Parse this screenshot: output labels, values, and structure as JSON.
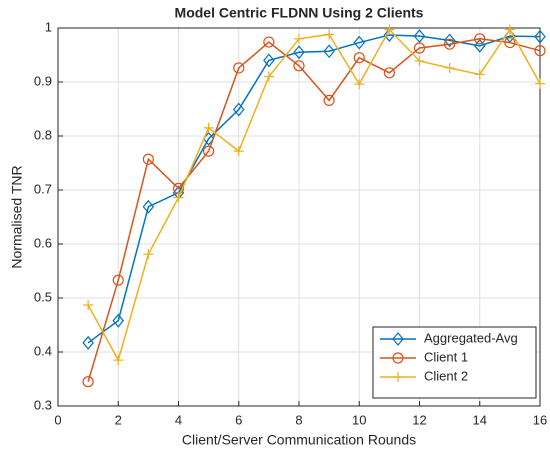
{
  "chart_data": {
    "type": "line",
    "title": "Model Centric FLDNN Using 2 Clients",
    "xlabel": "Client/Server Communication Rounds",
    "ylabel": "Normalised TNR",
    "x": [
      1,
      2,
      3,
      4,
      5,
      6,
      7,
      8,
      9,
      10,
      11,
      12,
      13,
      14,
      15,
      16
    ],
    "series": [
      {
        "name": "Aggregated-Avg",
        "color": "#0072BD",
        "marker": "diamond",
        "values": [
          0.417,
          0.458,
          0.669,
          0.695,
          0.795,
          0.849,
          0.94,
          0.955,
          0.957,
          0.973,
          0.987,
          0.985,
          0.977,
          0.967,
          0.985,
          0.984
        ]
      },
      {
        "name": "Client 1",
        "color": "#D95319",
        "marker": "circle",
        "values": [
          0.345,
          0.533,
          0.757,
          0.703,
          0.772,
          0.926,
          0.974,
          0.93,
          0.866,
          0.945,
          0.917,
          0.963,
          0.97,
          0.98,
          0.973,
          0.958
        ]
      },
      {
        "name": "Client 2",
        "color": "#EDB120",
        "marker": "plus",
        "values": [
          0.487,
          0.385,
          0.581,
          0.686,
          0.815,
          0.772,
          0.91,
          0.98,
          0.988,
          0.896,
          0.997,
          0.939,
          0.926,
          0.914,
          0.997,
          0.897
        ]
      }
    ],
    "xlim": [
      0,
      16
    ],
    "xticks": [
      0,
      2,
      4,
      6,
      8,
      10,
      12,
      14,
      16
    ],
    "ylim": [
      0.3,
      1
    ],
    "yticks": [
      0.3,
      0.4,
      0.5,
      0.6,
      0.7,
      0.8,
      0.9,
      1
    ],
    "grid": true,
    "legend": "southeast"
  }
}
